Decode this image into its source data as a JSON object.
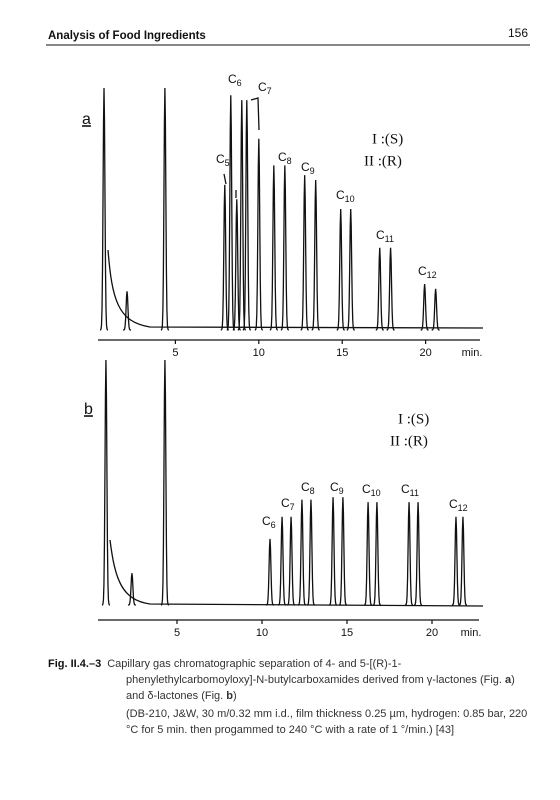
{
  "header": {
    "title": "Analysis of Food Ingredients",
    "page": "156"
  },
  "figures": [
    {
      "label": "a",
      "legend": [
        "I :(S)",
        "II :(R)"
      ],
      "xlim": [
        0,
        23.5
      ],
      "ylim": [
        0,
        100
      ],
      "xticks": [
        5,
        10,
        15,
        20
      ],
      "xunit": "min.",
      "peak_labels": [
        "C5",
        "C6",
        "C7",
        "C8",
        "C9",
        "C10",
        "C11",
        "C12"
      ],
      "peaks": {
        "t": [
          0.72,
          2.1,
          4.37,
          7.96,
          8.32,
          8.68,
          8.98,
          9.28,
          10.0,
          10.9,
          11.56,
          12.75,
          13.41,
          14.91,
          15.51,
          17.25,
          17.9,
          19.94,
          20.6
        ],
        "h": [
          100,
          16,
          100,
          60,
          97,
          54,
          95,
          95,
          79,
          68,
          68,
          64,
          62,
          50,
          50,
          34,
          34,
          19,
          17
        ]
      }
    },
    {
      "label": "b",
      "legend": [
        "I :(S)",
        "II :(R)"
      ],
      "xlim": [
        0,
        23
      ],
      "ylim": [
        0,
        100
      ],
      "xticks": [
        5,
        10,
        15,
        20
      ],
      "xunit": "min.",
      "peak_labels": [
        "C6",
        "C7",
        "C8",
        "C9",
        "C10",
        "C11",
        "C12"
      ],
      "peaks": {
        "t": [
          0.82,
          2.35,
          4.29,
          10.47,
          11.18,
          11.71,
          12.35,
          12.88,
          14.18,
          14.76,
          16.24,
          16.76,
          18.65,
          19.18,
          21.41,
          21.82
        ],
        "h": [
          100,
          13,
          100,
          27,
          36,
          36,
          43,
          43,
          44,
          44,
          42,
          42,
          42,
          42,
          36,
          36
        ]
      }
    }
  ],
  "caption": {
    "label": "Fig. II.4.–3",
    "parts": [
      "Capillary gas chromatographic separation of 4- and 5-[(R)-1-phenylethylcarbomoyloxy]-N-butylcarboxamides derived from γ-lactones (Fig. ",
      "a",
      ") and δ-lactones (Fig. ",
      "b",
      ")"
    ],
    "note": "(DB-210, J&W, 30 m/0.32 mm i.d., film thickness 0.25 µm, hydrogen: 0.85 bar, 220 °C for 5 min. then progammed to 240 °C with a rate of 1 °/min.) [43]"
  }
}
